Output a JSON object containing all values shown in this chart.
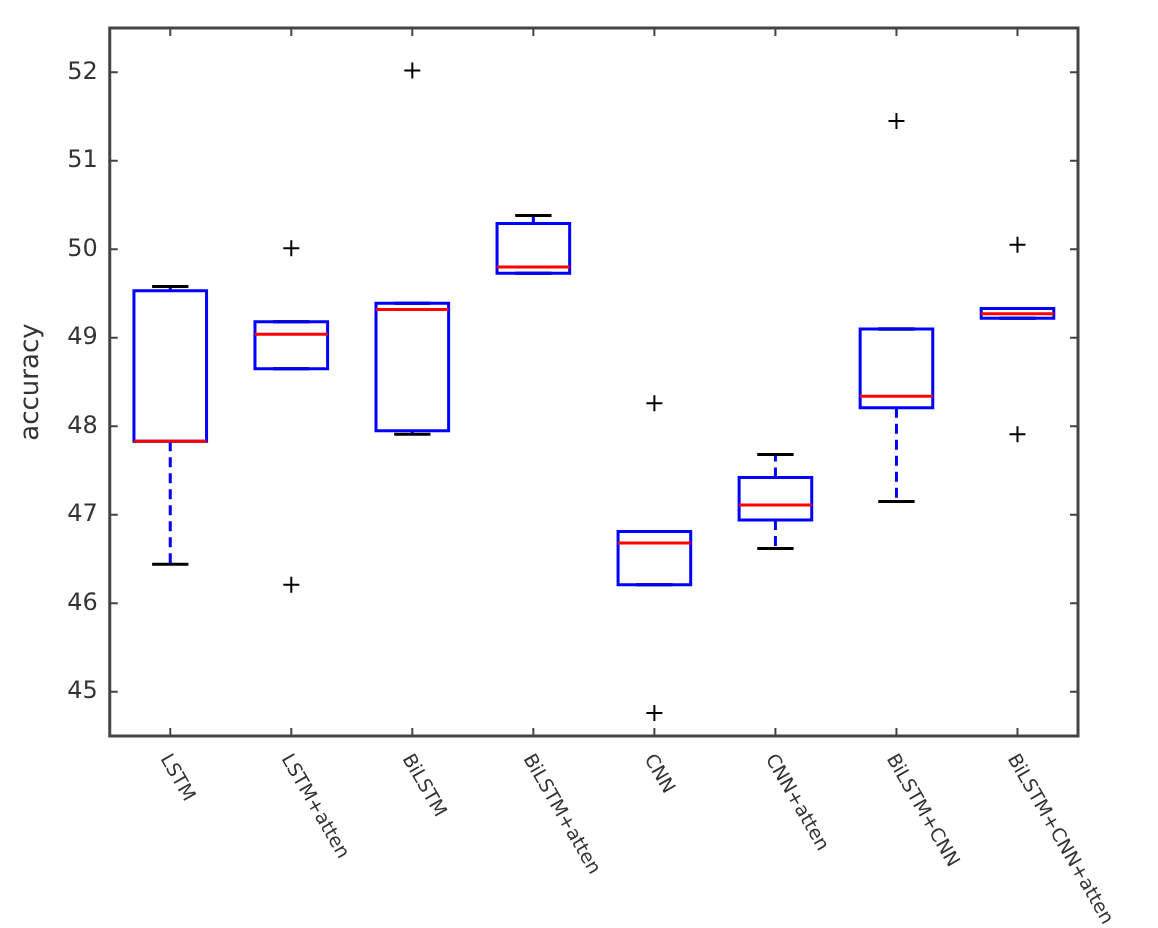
{
  "chart_data": {
    "type": "box",
    "ylabel": "accuracy",
    "categories": [
      "LSTM",
      "LSTM+atten",
      "BiLSTM",
      "BiLSTM+atten",
      "CNN",
      "CNN+atten",
      "BiLSTM+CNN",
      "BiLSTM+CNN+atten"
    ],
    "boxes": [
      {
        "low": 46.44,
        "q1": 47.83,
        "median": 47.83,
        "q3": 49.53,
        "high": 49.58
      },
      {
        "low": 48.65,
        "q1": 48.65,
        "median": 49.04,
        "q3": 49.18,
        "high": 49.18,
        "outliers": [
          50.01,
          46.21
        ]
      },
      {
        "low": 47.91,
        "q1": 47.95,
        "median": 49.32,
        "q3": 49.39,
        "high": 49.39,
        "outliers": [
          52.02
        ]
      },
      {
        "low": 49.73,
        "q1": 49.73,
        "median": 49.8,
        "q3": 50.29,
        "high": 50.38
      },
      {
        "low": 46.21,
        "q1": 46.21,
        "median": 46.68,
        "q3": 46.81,
        "high": 46.81,
        "outliers": [
          48.26,
          44.76
        ]
      },
      {
        "low": 46.62,
        "q1": 46.94,
        "median": 47.11,
        "q3": 47.42,
        "high": 47.68
      },
      {
        "low": 47.15,
        "q1": 48.21,
        "median": 48.34,
        "q3": 49.1,
        "high": 49.1,
        "outliers": [
          51.45
        ]
      },
      {
        "low": 49.22,
        "q1": 49.22,
        "median": 49.27,
        "q3": 49.33,
        "high": 49.33,
        "outliers": [
          50.05,
          47.91
        ]
      }
    ],
    "color": "#0000ff",
    "line_style": "dashed",
    "marker": "cross",
    "ylim": [
      44.5,
      52.5
    ],
    "yticks": [
      45,
      46,
      47,
      48,
      49,
      50,
      51,
      52
    ],
    "grid": false,
    "legend": false
  }
}
